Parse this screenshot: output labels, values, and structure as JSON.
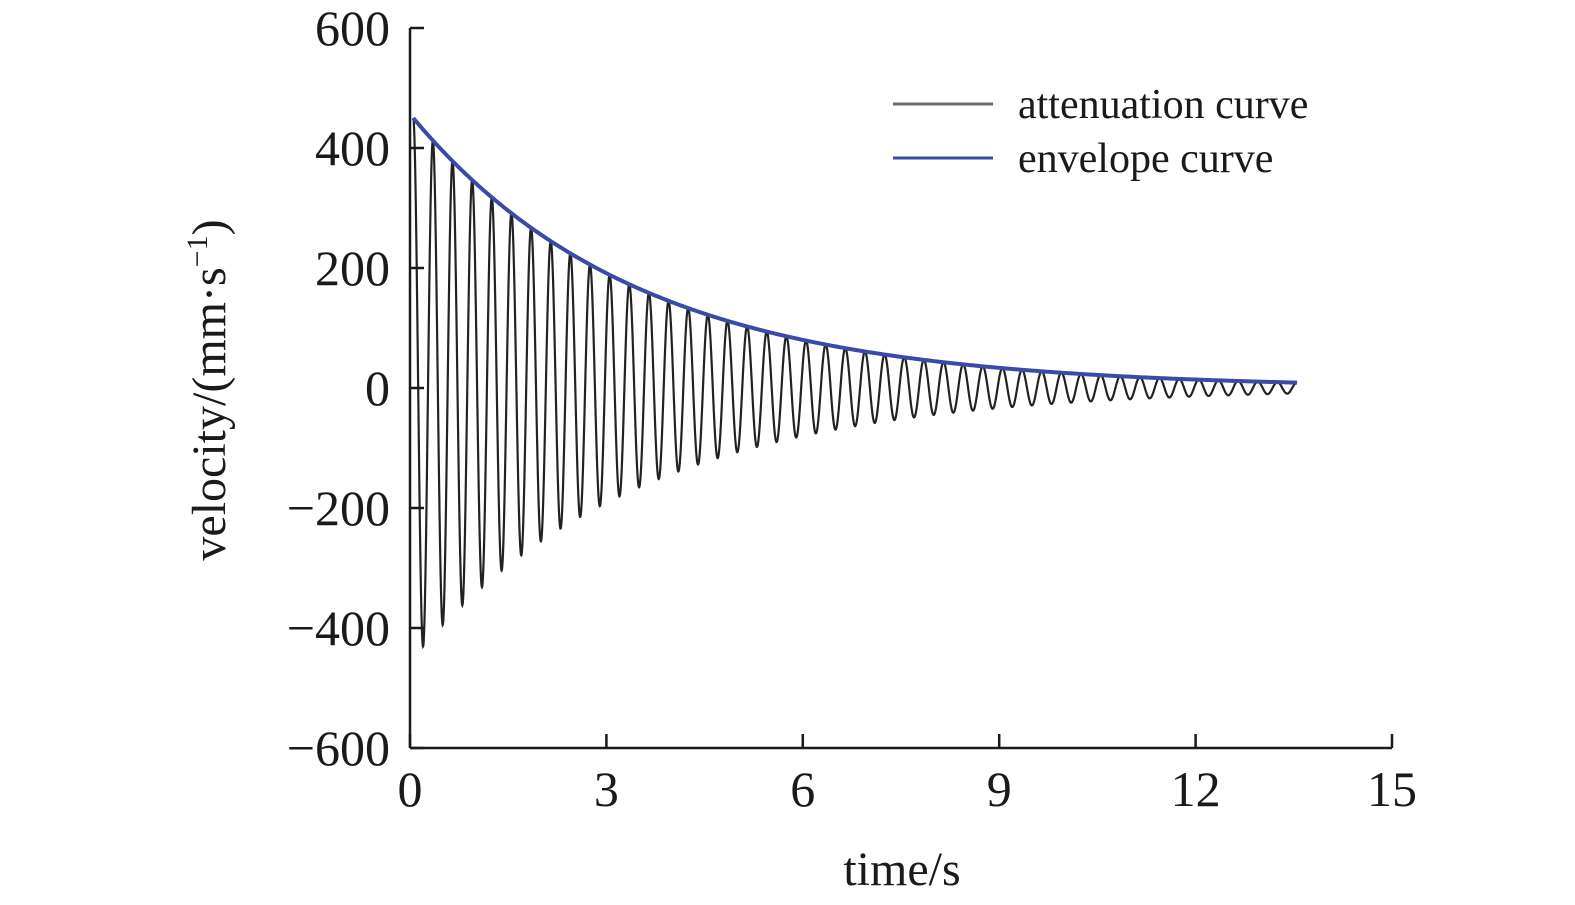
{
  "chart_data": {
    "type": "line",
    "title": "",
    "xlabel": "time/s",
    "ylabel_main": "velocity/(mm·s",
    "ylabel_sup": "−1",
    "ylabel_close": ")",
    "xlim": [
      0,
      15
    ],
    "ylim": [
      -600,
      600
    ],
    "x_ticks": [
      0,
      3,
      6,
      9,
      12,
      15
    ],
    "x_tick_labels": [
      "0",
      "3",
      "6",
      "9",
      "12",
      "15"
    ],
    "y_ticks": [
      -600,
      -400,
      -200,
      0,
      200,
      400,
      600
    ],
    "y_tick_labels": [
      "−600",
      "−400",
      "−200",
      "0",
      "200",
      "400",
      "600"
    ],
    "grid": false,
    "legend_position": "top-right",
    "series": [
      {
        "name": "attenuation curve",
        "color": "#222222",
        "model": "damped oscillation",
        "amplitude": 450,
        "decay_rate_per_s": 0.29,
        "period_s": 0.3,
        "t_start": 0.05,
        "t_end": 13.55
      },
      {
        "name": "envelope curve",
        "color": "#3a4aa8",
        "model": "exponential decay",
        "amplitude": 450,
        "decay_rate_per_s": 0.29,
        "t_start": 0.05,
        "t_end": 13.55
      }
    ]
  }
}
